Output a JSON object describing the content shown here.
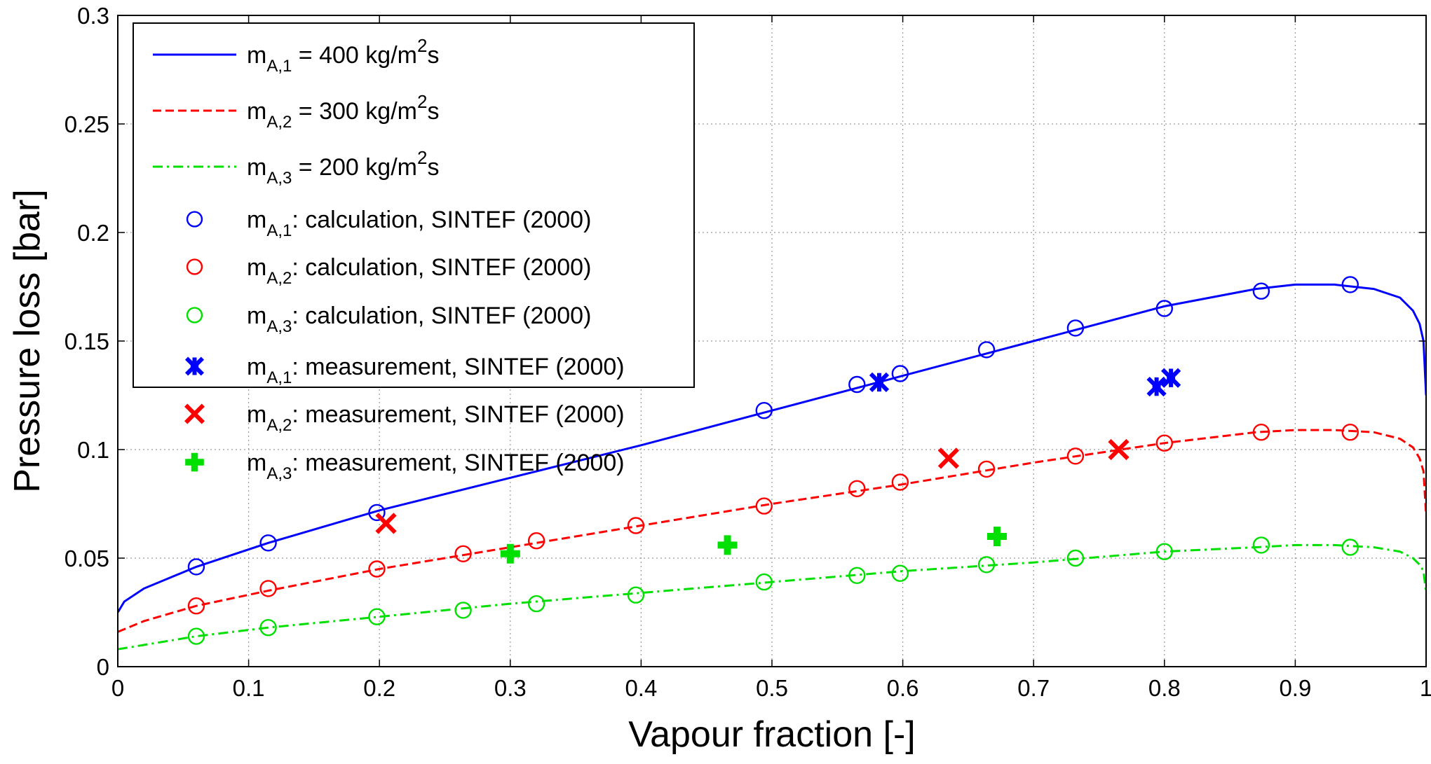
{
  "chart_data": {
    "type": "line",
    "xlabel": "Vapour fraction [-]",
    "ylabel": "Pressure loss [bar]",
    "xlim": [
      0,
      1
    ],
    "ylim": [
      0,
      0.3
    ],
    "grid": true,
    "legend_position": "top-left",
    "x_ticks": [
      "0",
      "0.1",
      "0.2",
      "0.3",
      "0.4",
      "0.5",
      "0.6",
      "0.7",
      "0.8",
      "0.9",
      "1"
    ],
    "y_ticks": [
      "0",
      "0.05",
      "0.1",
      "0.15",
      "0.2",
      "0.25",
      "0.3"
    ],
    "colors": {
      "blue": "#0000ff",
      "red": "#ff0000",
      "green": "#00e000"
    },
    "legend": [
      {
        "main": "m",
        "sub": "A,1",
        "rest": " = 400 kg/m",
        "sup": "2",
        "tail": "s",
        "symbol": "line-solid",
        "color": "#0000ff"
      },
      {
        "main": "m",
        "sub": "A,2",
        "rest": " = 300 kg/m",
        "sup": "2",
        "tail": "s",
        "symbol": "line-dashed",
        "color": "#ff0000"
      },
      {
        "main": "m",
        "sub": "A,3",
        "rest": " = 200 kg/m",
        "sup": "2",
        "tail": "s",
        "symbol": "line-dashdot",
        "color": "#00e000"
      },
      {
        "main": "m",
        "sub": "A,1",
        "rest": ": calculation, SINTEF (2000)",
        "sup": "",
        "tail": "",
        "symbol": "circle",
        "color": "#0000ff"
      },
      {
        "main": "m",
        "sub": "A,2",
        "rest": ": calculation, SINTEF (2000)",
        "sup": "",
        "tail": "",
        "symbol": "circle",
        "color": "#ff0000"
      },
      {
        "main": "m",
        "sub": "A,3",
        "rest": ": calculation, SINTEF (2000)",
        "sup": "",
        "tail": "",
        "symbol": "circle",
        "color": "#00e000"
      },
      {
        "main": "m",
        "sub": "A,1",
        "rest": ": measurement, SINTEF (2000)",
        "sup": "",
        "tail": "",
        "symbol": "star",
        "color": "#0000ff"
      },
      {
        "main": "m",
        "sub": "A,2",
        "rest": ": measurement, SINTEF (2000)",
        "sup": "",
        "tail": "",
        "symbol": "cross",
        "color": "#ff0000"
      },
      {
        "main": "m",
        "sub": "A,3",
        "rest": ": measurement, SINTEF (2000)",
        "sup": "",
        "tail": "",
        "symbol": "plus",
        "color": "#00e000"
      }
    ],
    "series": [
      {
        "kind": "line",
        "style": "solid",
        "color": "#0000ff",
        "x": [
          0,
          0.005,
          0.02,
          0.06,
          0.115,
          0.2,
          0.3,
          0.4,
          0.5,
          0.6,
          0.7,
          0.8,
          0.87,
          0.9,
          0.93,
          0.96,
          0.98,
          0.99,
          0.995,
          0.998,
          1.0
        ],
        "y": [
          0.025,
          0.03,
          0.036,
          0.046,
          0.057,
          0.072,
          0.087,
          0.102,
          0.118,
          0.134,
          0.15,
          0.166,
          0.174,
          0.176,
          0.176,
          0.174,
          0.17,
          0.164,
          0.158,
          0.15,
          0.125
        ]
      },
      {
        "kind": "line",
        "style": "dashed",
        "color": "#ff0000",
        "x": [
          0,
          0.02,
          0.06,
          0.115,
          0.2,
          0.3,
          0.4,
          0.5,
          0.6,
          0.7,
          0.8,
          0.87,
          0.9,
          0.93,
          0.96,
          0.98,
          0.99,
          0.995,
          0.998,
          1.0
        ],
        "y": [
          0.016,
          0.021,
          0.028,
          0.035,
          0.045,
          0.055,
          0.065,
          0.075,
          0.084,
          0.094,
          0.103,
          0.108,
          0.109,
          0.109,
          0.108,
          0.105,
          0.101,
          0.096,
          0.09,
          0.07
        ]
      },
      {
        "kind": "line",
        "style": "dashdot",
        "color": "#00e000",
        "x": [
          0,
          0.02,
          0.06,
          0.115,
          0.2,
          0.3,
          0.4,
          0.5,
          0.6,
          0.7,
          0.8,
          0.87,
          0.9,
          0.93,
          0.96,
          0.98,
          0.99,
          0.995,
          0.998,
          1.0
        ],
        "y": [
          0.008,
          0.01,
          0.014,
          0.018,
          0.023,
          0.029,
          0.034,
          0.039,
          0.044,
          0.048,
          0.053,
          0.055,
          0.056,
          0.056,
          0.055,
          0.053,
          0.05,
          0.047,
          0.044,
          0.034
        ]
      },
      {
        "kind": "marker",
        "symbol": "circle",
        "color": "#0000ff",
        "x": [
          0.06,
          0.115,
          0.198,
          0.565,
          0.598,
          0.664,
          0.732,
          0.8,
          0.874,
          0.942
        ],
        "y": [
          0.046,
          0.057,
          0.071,
          0.13,
          0.135,
          0.146,
          0.156,
          0.165,
          0.173,
          0.176
        ]
      },
      {
        "kind": "marker",
        "symbol": "circle",
        "color": "#ff0000",
        "x": [
          0.06,
          0.115,
          0.198,
          0.264,
          0.32,
          0.396,
          0.494,
          0.565,
          0.598,
          0.664,
          0.732,
          0.8,
          0.874,
          0.942
        ],
        "y": [
          0.028,
          0.036,
          0.045,
          0.052,
          0.058,
          0.065,
          0.074,
          0.082,
          0.085,
          0.091,
          0.097,
          0.103,
          0.108,
          0.108
        ]
      },
      {
        "kind": "marker",
        "symbol": "circle",
        "color": "#00e000",
        "x": [
          0.06,
          0.115,
          0.198,
          0.264,
          0.32,
          0.396,
          0.494,
          0.565,
          0.598,
          0.664,
          0.732,
          0.8,
          0.874,
          0.942
        ],
        "y": [
          0.014,
          0.018,
          0.023,
          0.026,
          0.029,
          0.033,
          0.039,
          0.042,
          0.043,
          0.047,
          0.05,
          0.053,
          0.056,
          0.055
        ]
      },
      {
        "kind": "marker",
        "symbol": "circle",
        "color": "#0000ff",
        "x": [
          0.494
        ],
        "y": [
          0.118
        ]
      },
      {
        "kind": "marker",
        "symbol": "star",
        "color": "#0000ff",
        "x": [
          0.582,
          0.794,
          0.805
        ],
        "y": [
          0.131,
          0.129,
          0.133
        ]
      },
      {
        "kind": "marker",
        "symbol": "cross",
        "color": "#ff0000",
        "x": [
          0.205,
          0.635,
          0.765
        ],
        "y": [
          0.066,
          0.096,
          0.1
        ]
      },
      {
        "kind": "marker",
        "symbol": "plus",
        "color": "#00e000",
        "x": [
          0.3,
          0.466,
          0.672
        ],
        "y": [
          0.052,
          0.056,
          0.06
        ]
      }
    ]
  }
}
